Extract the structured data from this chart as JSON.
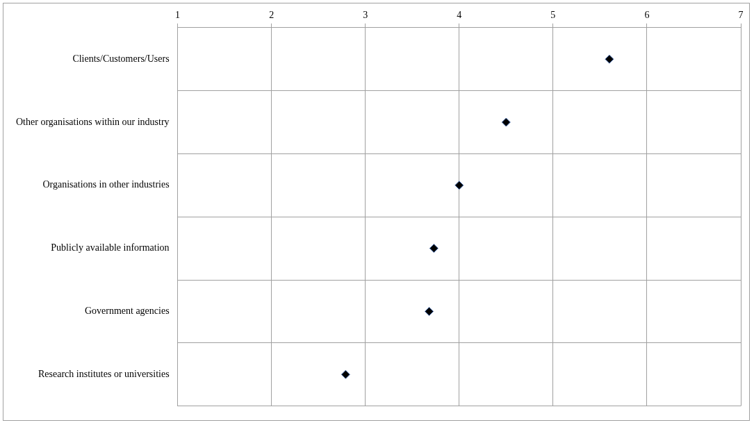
{
  "chart_data": {
    "type": "scatter",
    "orientation": "horizontal",
    "categories": [
      "Clients/Customers/Users",
      "Other organisations within our industry",
      "Organisations in other industries",
      "Publicly available information",
      "Government agencies",
      "Research institutes or universities"
    ],
    "values": [
      5.6,
      4.5,
      4.0,
      3.73,
      3.68,
      2.79
    ],
    "color": "#000000",
    "xlim": [
      1,
      7
    ],
    "xticks": [
      1,
      2,
      3,
      4,
      5,
      6,
      7
    ],
    "grid": true,
    "marker": "diamond"
  }
}
